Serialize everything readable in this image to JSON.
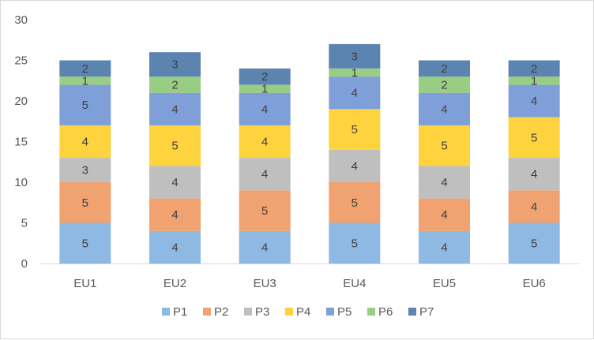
{
  "chart_data": {
    "type": "bar",
    "stacked": true,
    "categories": [
      "EU1",
      "EU2",
      "EU3",
      "EU4",
      "EU5",
      "EU6"
    ],
    "series": [
      {
        "name": "P1",
        "color": "#8EB9E3",
        "values": [
          5,
          4,
          4,
          5,
          4,
          5
        ]
      },
      {
        "name": "P2",
        "color": "#F0A370",
        "values": [
          5,
          4,
          5,
          5,
          4,
          4
        ]
      },
      {
        "name": "P3",
        "color": "#BFBFBF",
        "values": [
          3,
          4,
          4,
          4,
          4,
          4
        ]
      },
      {
        "name": "P4",
        "color": "#FFD33D",
        "values": [
          4,
          5,
          4,
          5,
          5,
          5
        ]
      },
      {
        "name": "P5",
        "color": "#7F9FD9",
        "values": [
          5,
          4,
          4,
          4,
          4,
          4
        ]
      },
      {
        "name": "P6",
        "color": "#9ACD84",
        "values": [
          1,
          2,
          1,
          1,
          2,
          1
        ]
      },
      {
        "name": "P7",
        "color": "#5B84B1",
        "values": [
          2,
          3,
          2,
          3,
          2,
          2
        ]
      }
    ],
    "yticks": [
      "0",
      "5",
      "10",
      "15",
      "20",
      "25",
      "30"
    ],
    "ylim": [
      0,
      30
    ],
    "grid": false,
    "legend_position": "bottom",
    "data_labels": true
  }
}
